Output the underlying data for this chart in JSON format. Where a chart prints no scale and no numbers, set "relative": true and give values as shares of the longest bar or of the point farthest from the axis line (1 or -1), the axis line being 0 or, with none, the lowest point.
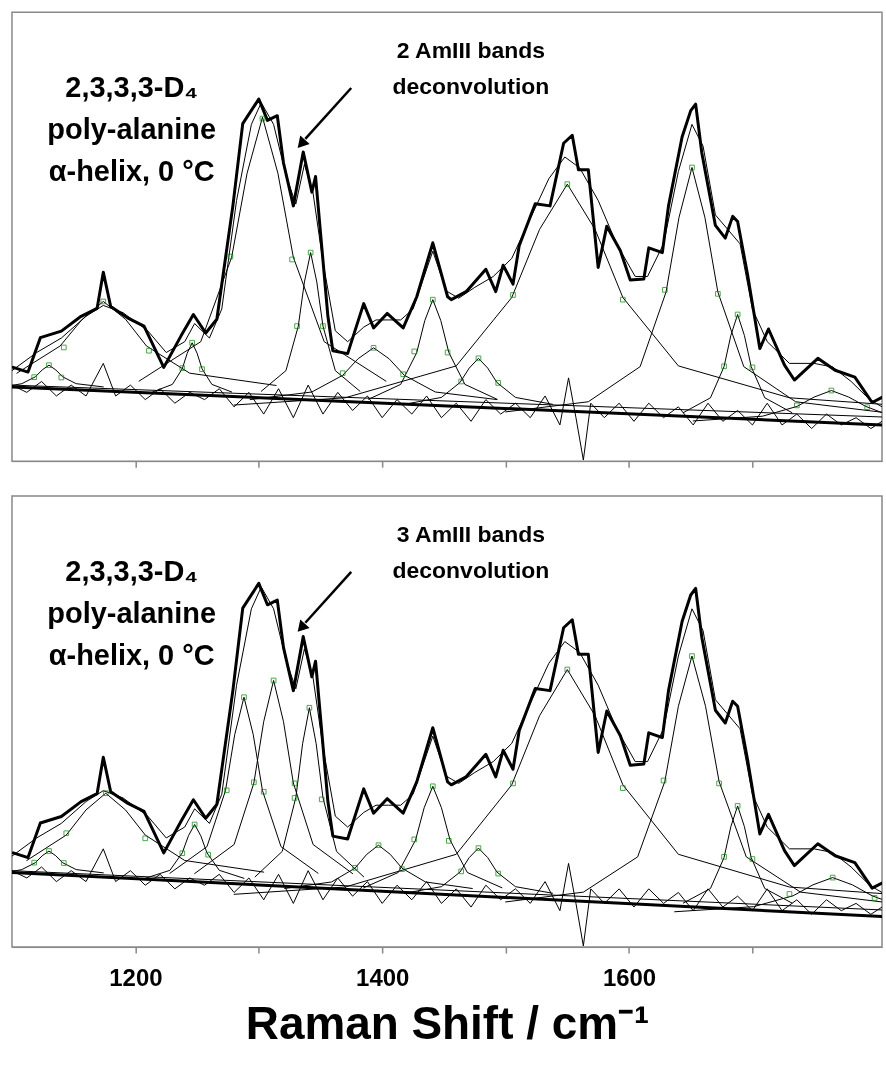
{
  "chart_data": [
    {
      "type": "line",
      "relative": true,
      "tick_labels": false,
      "xlim": [
        1100,
        1805
      ],
      "xticks": [
        1200,
        {
          "value": 1300,
          "label": null
        },
        1400,
        {
          "value": 1500,
          "label": null
        },
        1600,
        {
          "value": 1700,
          "label": null
        }
      ],
      "annotations": [
        "2,3,3,3-D₄\npoly-alanine\nα-helix, 0 °C",
        "2 AmIII bands\ndeconvolution"
      ],
      "series": [
        {
          "color": "#000000",
          "x": [
            1101,
            1113,
            1123,
            1140,
            1156,
            1169,
            1174,
            1180,
            1194,
            1207,
            1223,
            1237,
            1247,
            1257,
            1266,
            1279,
            1287,
            1300,
            1307,
            1315,
            1320,
            1328,
            1336,
            1343,
            1346,
            1356,
            1360,
            1372,
            1385,
            1393,
            1404,
            1417,
            1428,
            1441,
            1453,
            1456,
            1468,
            1484,
            1492,
            1498,
            1506,
            1511,
            1524,
            1536,
            1547,
            1554,
            1559,
            1567,
            1575,
            1582,
            1593,
            1601,
            1612,
            1616,
            1627,
            1632,
            1643,
            1650,
            1654,
            1659,
            1670,
            1678,
            1684,
            1688,
            1696,
            1706,
            1713,
            1726,
            1734,
            1753,
            1767,
            1783,
            1797,
            1805
          ],
          "values": [
            0.259,
            0.246,
            0.341,
            0.359,
            0.4,
            0.422,
            0.522,
            0.427,
            0.395,
            0.373,
            0.259,
            0.346,
            0.405,
            0.354,
            0.392,
            0.705,
            0.932,
            1.0,
            0.941,
            0.954,
            0.824,
            0.705,
            0.854,
            0.743,
            0.786,
            0.4,
            0.305,
            0.297,
            0.435,
            0.368,
            0.408,
            0.368,
            0.454,
            0.603,
            0.454,
            0.446,
            0.468,
            0.53,
            0.468,
            0.541,
            0.489,
            0.595,
            0.711,
            0.705,
            0.878,
            0.9,
            0.805,
            0.805,
            0.535,
            0.649,
            0.581,
            0.5,
            0.503,
            0.589,
            0.576,
            0.705,
            0.895,
            0.968,
            0.986,
            0.851,
            0.651,
            0.616,
            0.676,
            0.662,
            0.516,
            0.311,
            0.365,
            0.265,
            0.224,
            0.284,
            0.251,
            0.232,
            0.162,
            0.176
          ]
        },
        {
          "color": "#000000",
          "x": [
            1100,
            1805
          ],
          "values": [
            0.205,
            0.1
          ]
        },
        {
          "color": "#000000",
          "x": [
            1100,
            1120,
            1140,
            1160,
            1174,
            1190,
            1210,
            1225,
            1240,
            1248,
            1260,
            1270,
            1282,
            1294,
            1302,
            1312,
            1322,
            1330,
            1337,
            1344,
            1352,
            1362,
            1372,
            1385,
            1395,
            1405,
            1415,
            1425,
            1441,
            1452,
            1462,
            1475,
            1490,
            1505,
            1520,
            1535,
            1548,
            1560,
            1575,
            1590,
            1605,
            1615,
            1628,
            1640,
            1651,
            1660,
            1670,
            1680,
            1690,
            1700,
            1712,
            1730,
            1750,
            1765,
            1780,
            1795,
            1805
          ],
          "values": [
            0.25,
            0.3,
            0.34,
            0.4,
            0.43,
            0.41,
            0.36,
            0.3,
            0.33,
            0.38,
            0.34,
            0.42,
            0.72,
            0.93,
            0.99,
            0.93,
            0.79,
            0.71,
            0.82,
            0.74,
            0.55,
            0.36,
            0.33,
            0.37,
            0.39,
            0.39,
            0.39,
            0.42,
            0.58,
            0.47,
            0.45,
            0.48,
            0.51,
            0.56,
            0.67,
            0.78,
            0.84,
            0.81,
            0.72,
            0.6,
            0.51,
            0.51,
            0.6,
            0.8,
            0.93,
            0.87,
            0.68,
            0.64,
            0.6,
            0.42,
            0.33,
            0.27,
            0.27,
            0.26,
            0.22,
            0.17,
            0.15
          ]
        },
        {
          "color": "#000000",
          "x": [
            1100,
            1805
          ],
          "values": [
            0.21,
            0.122
          ]
        },
        {
          "color": "#000000",
          "x": [
            1100,
            1112,
            1124,
            1136,
            1148,
            1160,
            1174,
            1184,
            1196,
            1208,
            1220,
            1232,
            1244,
            1256,
            1268,
            1280,
            1292,
            1304,
            1316,
            1328,
            1340,
            1352,
            1364,
            1376,
            1388,
            1400,
            1412,
            1424,
            1436,
            1448,
            1460,
            1472,
            1484,
            1496,
            1508,
            1520,
            1532,
            1544,
            1551,
            1557,
            1563,
            1569,
            1580,
            1592,
            1604,
            1616,
            1628,
            1640,
            1652,
            1664,
            1676,
            1688,
            1700,
            1712,
            1724,
            1736,
            1748,
            1760,
            1772,
            1784,
            1796,
            1805
          ],
          "values": [
            0.21,
            0.19,
            0.22,
            0.18,
            0.21,
            0.18,
            0.27,
            0.18,
            0.21,
            0.17,
            0.2,
            0.16,
            0.19,
            0.17,
            0.2,
            0.15,
            0.19,
            0.13,
            0.2,
            0.12,
            0.21,
            0.13,
            0.19,
            0.14,
            0.18,
            0.12,
            0.17,
            0.13,
            0.18,
            0.12,
            0.16,
            0.11,
            0.17,
            0.13,
            0.16,
            0.12,
            0.18,
            0.1,
            0.23,
            0.12,
            0.003,
            0.16,
            0.12,
            0.16,
            0.11,
            0.16,
            0.12,
            0.15,
            0.1,
            0.16,
            0.11,
            0.14,
            0.1,
            0.16,
            0.1,
            0.13,
            0.09,
            0.13,
            0.1,
            0.12,
            0.09,
            0.11
          ]
        },
        {
          "color": "#000000",
          "x": [
            1104,
            1139,
            1157,
            1174,
            1192,
            1209,
            1244,
            1314
          ],
          "values": [
            0.243,
            0.318,
            0.392,
            0.441,
            0.392,
            0.318,
            0.243,
            0.209
          ]
        },
        {
          "color": "#000000",
          "x": [
            1100,
            1108,
            1119,
            1124.5,
            1130,
            1135.5,
            1141,
            1152,
            1174
          ],
          "values": [
            0.209,
            0.214,
            0.233,
            0.252,
            0.265,
            0.252,
            0.233,
            0.214,
            0.205
          ]
        },
        {
          "color": "#000000",
          "x": [
            1214,
            1230,
            1238,
            1242,
            1246,
            1250,
            1254,
            1262,
            1278
          ],
          "values": [
            0.191,
            0.212,
            0.255,
            0.298,
            0.327,
            0.298,
            0.255,
            0.212,
            0.191
          ]
        },
        {
          "color": "#000000",
          "x": [
            1203,
            1253,
            1278,
            1290.5,
            1303,
            1315.5,
            1328,
            1353,
            1403
          ],
          "values": [
            0.221,
            0.33,
            0.563,
            0.795,
            0.95,
            0.795,
            0.563,
            0.33,
            0.221
          ]
        },
        {
          "color": "#000000",
          "x": [
            1302,
            1322,
            1332,
            1337,
            1342,
            1347,
            1352,
            1362,
            1382
          ],
          "values": [
            0.193,
            0.25,
            0.373,
            0.495,
            0.576,
            0.495,
            0.373,
            0.25,
            0.193
          ]
        },
        {
          "color": "#000000",
          "x": [
            1293,
            1343,
            1368,
            1380.5,
            1393,
            1405.5,
            1418,
            1443,
            1493
          ],
          "values": [
            0.17,
            0.191,
            0.237,
            0.283,
            0.313,
            0.283,
            0.237,
            0.191,
            0.17
          ]
        },
        {
          "color": "#000000",
          "x": [
            1389,
            1415,
            1428,
            1434.5,
            1441,
            1447.5,
            1454,
            1467,
            1493
          ],
          "values": [
            0.171,
            0.212,
            0.3,
            0.388,
            0.446,
            0.388,
            0.3,
            0.212,
            0.171
          ]
        },
        {
          "color": "#000000",
          "x": [
            1418,
            1448,
            1463,
            1470.5,
            1478,
            1485.5,
            1493,
            1508,
            1538
          ],
          "values": [
            0.157,
            0.176,
            0.217,
            0.257,
            0.284,
            0.257,
            0.217,
            0.176,
            0.157
          ]
        },
        {
          "color": "#000000",
          "x": [
            1280,
            1370,
            1460,
            1505,
            1527.5,
            1550,
            1572.5,
            1595,
            1640,
            1730,
            1805
          ],
          "values": [
            0.155,
            0.175,
            0.263,
            0.452,
            0.64,
            0.765,
            0.64,
            0.452,
            0.263,
            0.175,
            0.157
          ]
        },
        {
          "color": "#000000",
          "x": [
            1500,
            1567,
            1609,
            1630,
            1640.5,
            1651,
            1661.5,
            1672,
            1693,
            1735,
            1805
          ],
          "values": [
            0.136,
            0.164,
            0.261,
            0.467,
            0.673,
            0.811,
            0.673,
            0.467,
            0.261,
            0.164,
            0.135
          ]
        },
        {
          "color": "#000000",
          "x": [
            1644,
            1666,
            1677,
            1682.5,
            1688,
            1693.5,
            1699,
            1710,
            1732
          ],
          "values": [
            0.134,
            0.175,
            0.261,
            0.347,
            0.405,
            0.347,
            0.261,
            0.175,
            0.134
          ]
        },
        {
          "color": "#000000",
          "x": [
            1652,
            1708,
            1736,
            1750,
            1764,
            1778,
            1792,
            1805
          ],
          "values": [
            0.111,
            0.124,
            0.151,
            0.177,
            0.195,
            0.177,
            0.151,
            0.134
          ]
        },
        {
          "type": "scatter",
          "marker": "square",
          "color": "#008000",
          "x": [
            1142,
            1174,
            1211,
            1118,
            1130,
            1140,
            1238,
            1246,
            1254,
            1277,
            1303,
            1327,
            1331,
            1342,
            1352,
            1368,
            1393,
            1417,
            1426,
            1441,
            1453,
            1464,
            1478,
            1494,
            1506,
            1550,
            1595,
            1629,
            1651,
            1672,
            1677,
            1688,
            1700,
            1736,
            1764,
            1793
          ],
          "values": [
            0.314,
            0.441,
            0.305,
            0.232,
            0.265,
            0.231,
            0.257,
            0.327,
            0.254,
            0.565,
            0.946,
            0.557,
            0.373,
            0.576,
            0.373,
            0.243,
            0.313,
            0.24,
            0.303,
            0.446,
            0.3,
            0.22,
            0.284,
            0.216,
            0.459,
            0.765,
            0.446,
            0.473,
            0.811,
            0.462,
            0.262,
            0.405,
            0.259,
            0.154,
            0.195,
            0.149
          ]
        }
      ]
    },
    {
      "type": "line",
      "relative": true,
      "tick_labels": "x",
      "xlim": [
        1100,
        1805
      ],
      "xlabel": "Raman Shift / cm⁻¹",
      "xticks": [
        1200,
        {
          "value": 1300,
          "label": null
        },
        1400,
        {
          "value": 1500,
          "label": null
        },
        1600,
        {
          "value": 1700,
          "label": null
        }
      ],
      "annotations": [
        "2,3,3,3-D₄\npoly-alanine\nα-helix, 0 °C",
        "3 AmIII bands\ndeconvolution"
      ],
      "series": [
        {
          "color": "#000000",
          "x": [
            1101,
            1113,
            1123,
            1140,
            1156,
            1169,
            1174,
            1180,
            1194,
            1207,
            1223,
            1237,
            1247,
            1257,
            1266,
            1279,
            1287,
            1300,
            1307,
            1315,
            1320,
            1328,
            1336,
            1343,
            1346,
            1356,
            1360,
            1372,
            1385,
            1393,
            1404,
            1417,
            1428,
            1441,
            1453,
            1456,
            1468,
            1484,
            1492,
            1498,
            1506,
            1511,
            1524,
            1536,
            1547,
            1554,
            1559,
            1567,
            1575,
            1582,
            1593,
            1601,
            1612,
            1616,
            1627,
            1632,
            1643,
            1650,
            1654,
            1659,
            1670,
            1678,
            1684,
            1688,
            1696,
            1706,
            1713,
            1726,
            1734,
            1753,
            1767,
            1783,
            1797,
            1805
          ],
          "values": [
            0.259,
            0.246,
            0.341,
            0.359,
            0.4,
            0.422,
            0.522,
            0.427,
            0.395,
            0.373,
            0.259,
            0.346,
            0.405,
            0.354,
            0.392,
            0.705,
            0.932,
            1.0,
            0.941,
            0.954,
            0.824,
            0.705,
            0.854,
            0.743,
            0.786,
            0.4,
            0.305,
            0.297,
            0.435,
            0.368,
            0.408,
            0.368,
            0.454,
            0.603,
            0.454,
            0.446,
            0.468,
            0.53,
            0.468,
            0.541,
            0.489,
            0.595,
            0.711,
            0.705,
            0.878,
            0.9,
            0.805,
            0.805,
            0.535,
            0.649,
            0.581,
            0.5,
            0.503,
            0.589,
            0.576,
            0.705,
            0.895,
            0.968,
            0.986,
            0.851,
            0.651,
            0.616,
            0.676,
            0.662,
            0.516,
            0.311,
            0.365,
            0.265,
            0.224,
            0.284,
            0.251,
            0.232,
            0.162,
            0.176
          ]
        },
        {
          "color": "#000000",
          "x": [
            1100,
            1805
          ],
          "values": [
            0.205,
            0.084
          ]
        },
        {
          "color": "#000000",
          "x": [
            1100,
            1120,
            1140,
            1160,
            1174,
            1190,
            1210,
            1225,
            1240,
            1248,
            1260,
            1270,
            1282,
            1294,
            1302,
            1312,
            1322,
            1330,
            1337,
            1344,
            1352,
            1362,
            1372,
            1385,
            1395,
            1405,
            1415,
            1425,
            1441,
            1452,
            1462,
            1475,
            1490,
            1505,
            1520,
            1535,
            1548,
            1560,
            1575,
            1590,
            1605,
            1615,
            1628,
            1640,
            1651,
            1660,
            1670,
            1680,
            1690,
            1700,
            1712,
            1730,
            1750,
            1765,
            1780,
            1795,
            1805
          ],
          "values": [
            0.25,
            0.3,
            0.34,
            0.4,
            0.43,
            0.41,
            0.36,
            0.3,
            0.33,
            0.38,
            0.34,
            0.42,
            0.72,
            0.93,
            0.99,
            0.93,
            0.79,
            0.71,
            0.82,
            0.74,
            0.55,
            0.36,
            0.33,
            0.37,
            0.39,
            0.39,
            0.39,
            0.42,
            0.58,
            0.47,
            0.45,
            0.48,
            0.51,
            0.56,
            0.67,
            0.78,
            0.84,
            0.81,
            0.72,
            0.6,
            0.51,
            0.51,
            0.6,
            0.8,
            0.93,
            0.87,
            0.68,
            0.64,
            0.6,
            0.42,
            0.33,
            0.27,
            0.27,
            0.26,
            0.22,
            0.17,
            0.15
          ]
        },
        {
          "color": "#000000",
          "x": [
            1100,
            1805
          ],
          "values": [
            0.21,
            0.102
          ]
        },
        {
          "color": "#000000",
          "x": [
            1100,
            1112,
            1124,
            1136,
            1148,
            1160,
            1174,
            1184,
            1196,
            1208,
            1220,
            1232,
            1244,
            1256,
            1268,
            1280,
            1292,
            1304,
            1316,
            1328,
            1340,
            1352,
            1364,
            1376,
            1388,
            1400,
            1412,
            1424,
            1436,
            1448,
            1460,
            1472,
            1484,
            1496,
            1508,
            1520,
            1532,
            1544,
            1551,
            1557,
            1563,
            1569,
            1580,
            1592,
            1604,
            1616,
            1628,
            1640,
            1652,
            1664,
            1676,
            1688,
            1700,
            1712,
            1724,
            1736,
            1748,
            1760,
            1772,
            1784,
            1796,
            1805
          ],
          "values": [
            0.21,
            0.19,
            0.22,
            0.18,
            0.21,
            0.18,
            0.27,
            0.18,
            0.21,
            0.17,
            0.2,
            0.16,
            0.19,
            0.17,
            0.2,
            0.15,
            0.19,
            0.13,
            0.2,
            0.12,
            0.21,
            0.13,
            0.19,
            0.14,
            0.18,
            0.12,
            0.17,
            0.13,
            0.18,
            0.12,
            0.16,
            0.11,
            0.17,
            0.13,
            0.16,
            0.12,
            0.18,
            0.1,
            0.23,
            0.12,
            0.003,
            0.16,
            0.12,
            0.16,
            0.11,
            0.16,
            0.12,
            0.15,
            0.1,
            0.16,
            0.11,
            0.14,
            0.1,
            0.16,
            0.1,
            0.13,
            0.09,
            0.13,
            0.1,
            0.12,
            0.09,
            0.11
          ]
        },
        {
          "color": "#000000",
          "x": [
            1112,
            1144,
            1160,
            1176,
            1192,
            1208,
            1240,
            1304
          ],
          "values": [
            0.238,
            0.308,
            0.377,
            0.423,
            0.377,
            0.308,
            0.238,
            0.206
          ]
        },
        {
          "color": "#000000",
          "x": [
            1100,
            1108,
            1119,
            1124.5,
            1130,
            1135.5,
            1141,
            1152,
            1174
          ],
          "values": [
            0.208,
            0.213,
            0.232,
            0.251,
            0.264,
            0.251,
            0.232,
            0.213,
            0.204
          ]
        },
        {
          "color": "#000000",
          "x": [
            1208,
            1228,
            1238,
            1243,
            1248,
            1253,
            1258,
            1268,
            1288
          ],
          "values": [
            0.189,
            0.211,
            0.259,
            0.306,
            0.337,
            0.306,
            0.259,
            0.211,
            0.189
          ]
        },
        {
          "color": "#000000",
          "x": [
            1228,
            1258,
            1273,
            1280.5,
            1288,
            1295.5,
            1303,
            1318,
            1348
          ],
          "values": [
            0.203,
            0.276,
            0.43,
            0.584,
            0.687,
            0.584,
            0.43,
            0.276,
            0.203
          ]
        },
        {
          "color": "#000000",
          "x": [
            1248,
            1280,
            1296,
            1304,
            1312,
            1320,
            1328,
            1344,
            1376
          ],
          "values": [
            0.202,
            0.282,
            0.451,
            0.62,
            0.733,
            0.62,
            0.451,
            0.282,
            0.202
          ]
        },
        {
          "color": "#000000",
          "x": [
            1297,
            1319,
            1330,
            1335.5,
            1341,
            1346.5,
            1352,
            1363,
            1385
          ],
          "values": [
            0.193,
            0.263,
            0.411,
            0.559,
            0.658,
            0.559,
            0.411,
            0.263,
            0.193
          ]
        },
        {
          "color": "#000000",
          "x": [
            1321,
            1359,
            1378,
            1387.5,
            1397,
            1406.5,
            1416,
            1435,
            1473
          ],
          "values": [
            0.161,
            0.179,
            0.217,
            0.255,
            0.28,
            0.255,
            0.217,
            0.179,
            0.161
          ]
        },
        {
          "color": "#000000",
          "x": [
            1385,
            1413,
            1427,
            1434,
            1441,
            1448,
            1455,
            1469,
            1497
          ],
          "values": [
            0.163,
            0.205,
            0.294,
            0.383,
            0.442,
            0.383,
            0.294,
            0.205,
            0.163
          ]
        },
        {
          "color": "#000000",
          "x": [
            1418,
            1448,
            1463,
            1470.5,
            1478,
            1485.5,
            1493,
            1508,
            1538
          ],
          "values": [
            0.148,
            0.166,
            0.206,
            0.246,
            0.272,
            0.246,
            0.206,
            0.166,
            0.148
          ]
        },
        {
          "color": "#000000",
          "x": [
            1280,
            1370,
            1460,
            1505,
            1527.5,
            1550,
            1572.5,
            1595,
            1640,
            1730,
            1805
          ],
          "values": [
            0.145,
            0.165,
            0.255,
            0.446,
            0.636,
            0.763,
            0.636,
            0.446,
            0.255,
            0.165,
            0.147
          ]
        },
        {
          "color": "#000000",
          "x": [
            1500,
            1563,
            1607,
            1629,
            1640,
            1651,
            1662,
            1673,
            1695,
            1739,
            1805
          ],
          "values": [
            0.124,
            0.151,
            0.248,
            0.455,
            0.662,
            0.8,
            0.662,
            0.455,
            0.248,
            0.151,
            0.124
          ]
        },
        {
          "color": "#000000",
          "x": [
            1644,
            1666,
            1677,
            1682.5,
            1688,
            1693.5,
            1699,
            1710,
            1732
          ],
          "values": [
            0.121,
            0.161,
            0.246,
            0.331,
            0.388,
            0.331,
            0.246,
            0.161,
            0.121
          ]
        },
        {
          "color": "#000000",
          "x": [
            1637,
            1701,
            1733,
            1749,
            1765,
            1781,
            1797,
            1805
          ],
          "values": [
            0.097,
            0.111,
            0.141,
            0.171,
            0.191,
            0.171,
            0.141,
            0.131
          ]
        },
        {
          "type": "scatter",
          "marker": "square",
          "color": "#008000",
          "x": [
            1144,
            1176,
            1208,
            1118,
            1130,
            1142,
            1238,
            1248,
            1259,
            1274,
            1288,
            1304,
            1296,
            1312,
            1329,
            1329,
            1341,
            1351,
            1378,
            1397,
            1416,
            1426,
            1441,
            1454,
            1464,
            1478,
            1494,
            1506,
            1550,
            1595,
            1628,
            1651,
            1673,
            1677,
            1688,
            1700,
            1730,
            1765,
            1799
          ],
          "values": [
            0.313,
            0.423,
            0.299,
            0.232,
            0.264,
            0.231,
            0.258,
            0.337,
            0.254,
            0.431,
            0.687,
            0.427,
            0.453,
            0.733,
            0.45,
            0.41,
            0.658,
            0.406,
            0.218,
            0.28,
            0.214,
            0.296,
            0.442,
            0.292,
            0.208,
            0.272,
            0.202,
            0.45,
            0.763,
            0.437,
            0.458,
            0.8,
            0.45,
            0.248,
            0.388,
            0.242,
            0.146,
            0.191,
            0.135
          ]
        }
      ]
    }
  ]
}
